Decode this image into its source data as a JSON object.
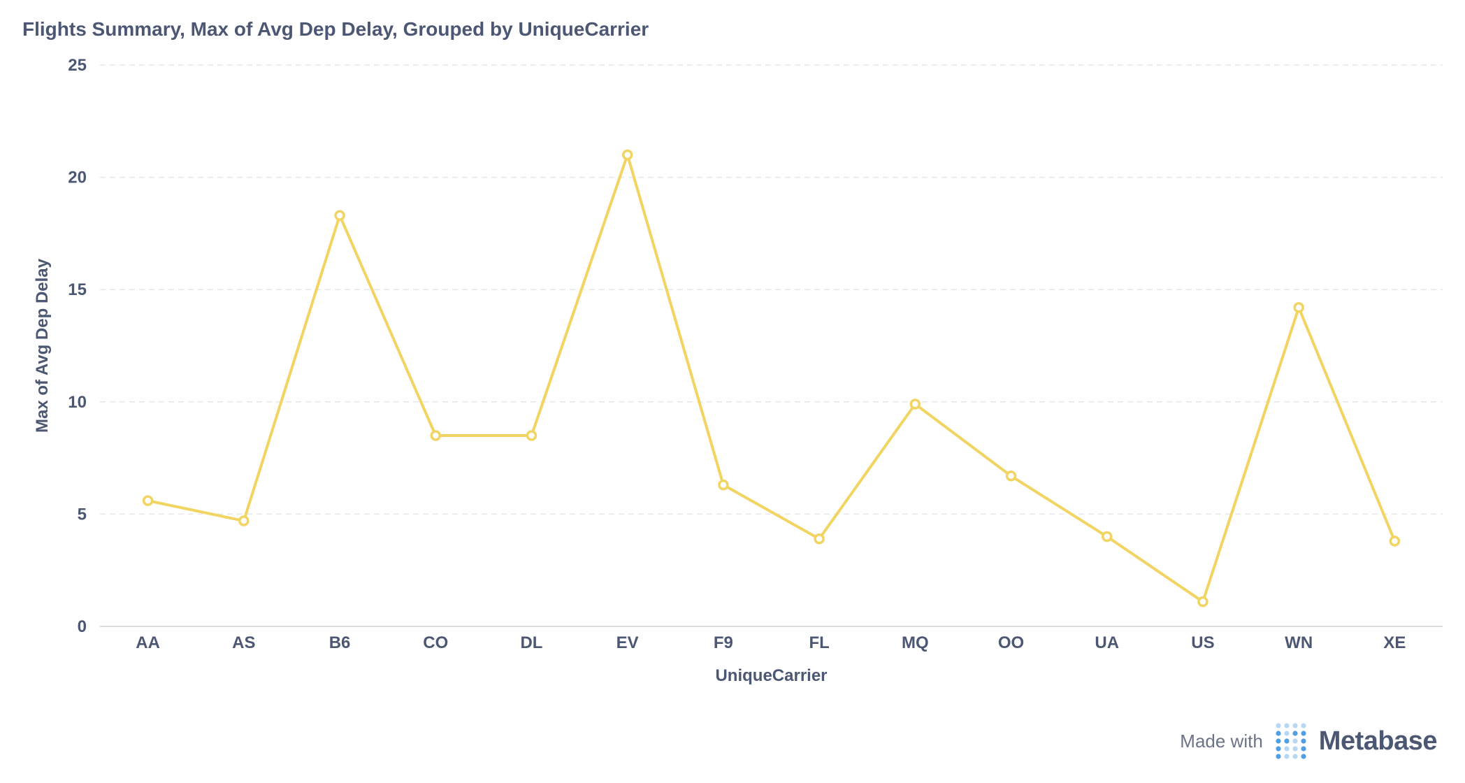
{
  "chart_data": {
    "type": "line",
    "title": "Flights Summary, Max of Avg Dep Delay, Grouped by UniqueCarrier",
    "xlabel": "UniqueCarrier",
    "ylabel": "Max of Avg Dep Delay",
    "categories": [
      "AA",
      "AS",
      "B6",
      "CO",
      "DL",
      "EV",
      "F9",
      "FL",
      "MQ",
      "OO",
      "UA",
      "US",
      "WN",
      "XE"
    ],
    "series": [
      {
        "values": [
          5.6,
          4.7,
          18.3,
          8.5,
          8.5,
          21.0,
          6.3,
          3.9,
          9.9,
          6.7,
          4.0,
          1.1,
          14.2,
          3.8
        ]
      }
    ],
    "ylim": [
      0,
      25
    ],
    "yticks": [
      0,
      5,
      10,
      15,
      20,
      25
    ],
    "grid": true,
    "colors": {
      "line": "#F2D463",
      "text": "#4c5773",
      "grid": "#e6e7eb"
    }
  },
  "footer": {
    "made_with": "Made with",
    "brand": "Metabase",
    "icon": "metabase-logo-icon"
  }
}
